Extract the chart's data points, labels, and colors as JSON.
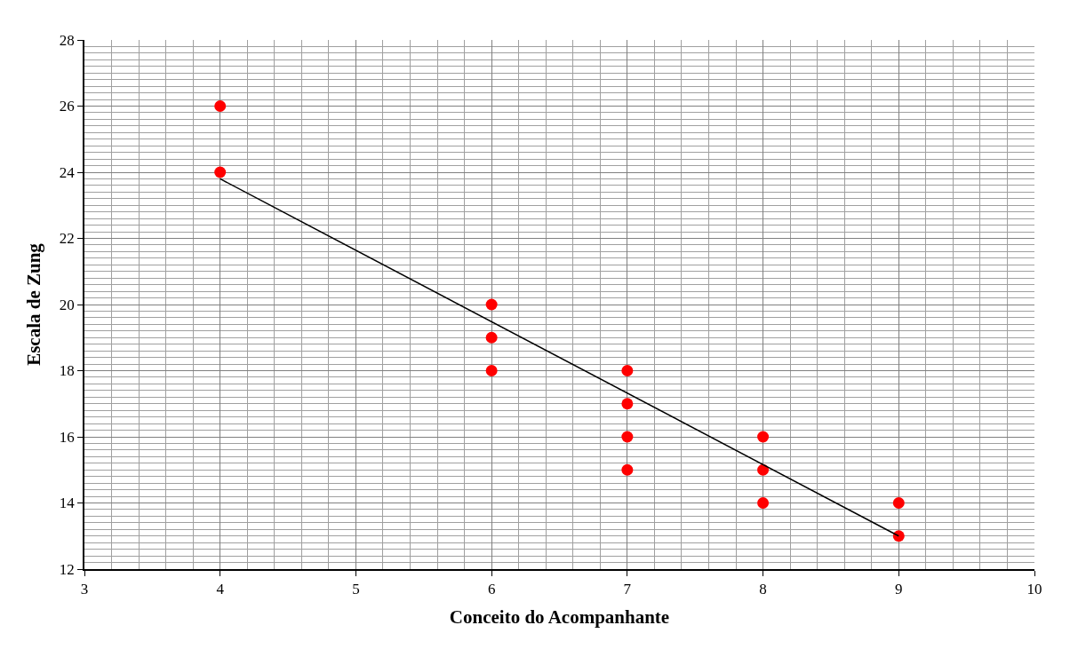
{
  "chart_data": {
    "type": "scatter",
    "xlabel": "Conceito do Acompanhante",
    "ylabel": "Escala de Zung",
    "xlim": [
      3,
      10
    ],
    "xticks": [
      3,
      4,
      5,
      6,
      7,
      8,
      9,
      10
    ],
    "ylim": [
      12,
      28
    ],
    "yticks": [
      12,
      14,
      16,
      18,
      20,
      22,
      24,
      26,
      28
    ],
    "grid": true,
    "series": [
      {
        "marker": "circle",
        "color": "#ff0000",
        "x": [
          4,
          4,
          6,
          6,
          6,
          7,
          7,
          7,
          7,
          8,
          8,
          8,
          9,
          9
        ],
        "values": [
          26,
          24,
          20,
          19,
          18,
          18,
          17,
          16,
          15,
          16,
          15,
          14,
          14,
          13
        ]
      },
      {
        "type": "line",
        "marker": "none",
        "color": "#000000",
        "x": [
          4,
          9
        ],
        "values": [
          23.8,
          13.0
        ]
      }
    ]
  }
}
